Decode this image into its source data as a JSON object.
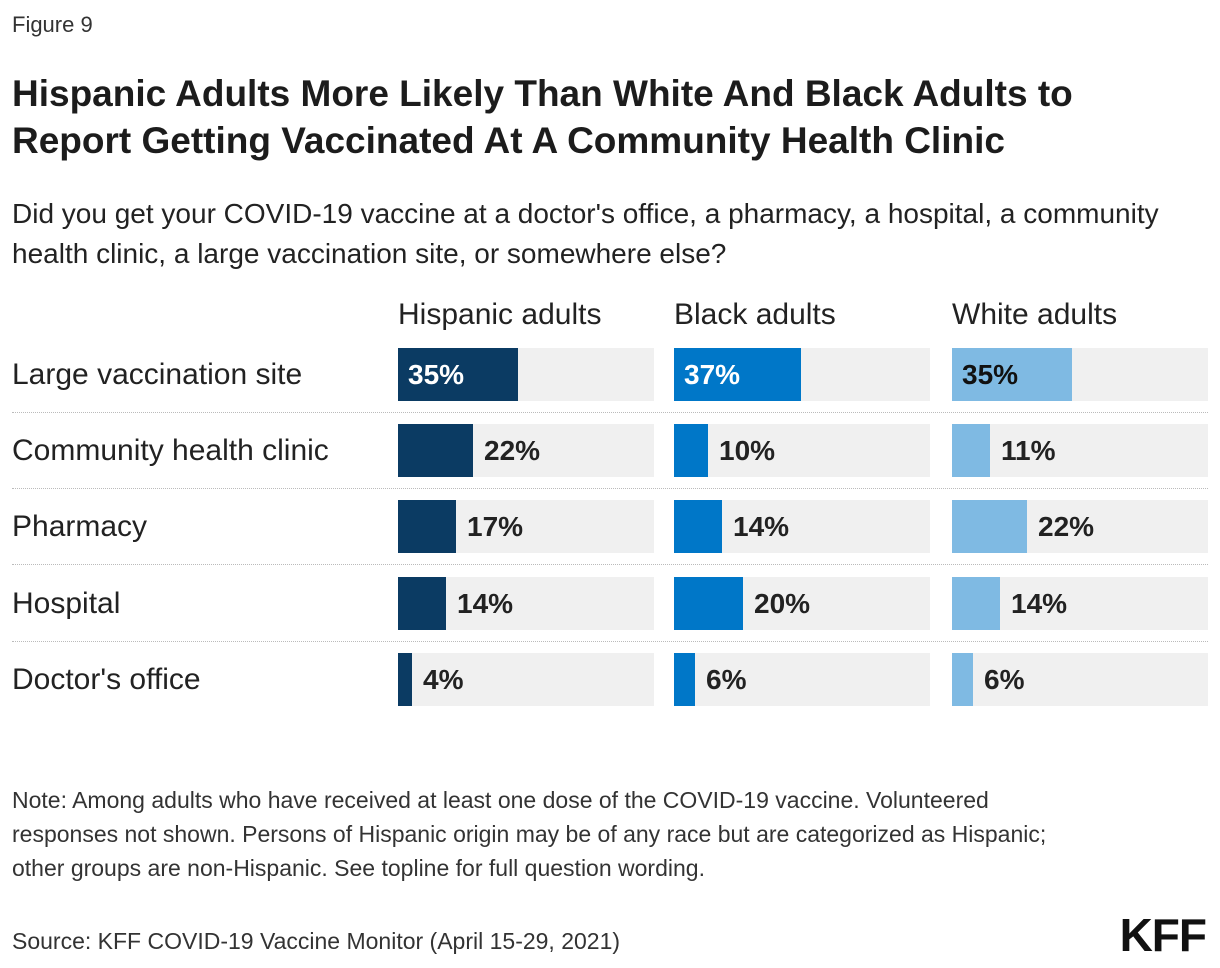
{
  "figure_label": "Figure 9",
  "logo_text": "KFF",
  "note": "Note: Among adults who have received at least one dose of the COVID-19 vaccine. Volunteered responses not shown. Persons of Hispanic origin may be of any race but are categorized as Hispanic; other groups are non-Hispanic. See topline for full question wording.",
  "source": "Source: KFF COVID-19 Vaccine Monitor (April 15-29, 2021)",
  "chart_data": {
    "type": "bar",
    "orientation": "horizontal",
    "title": "Hispanic Adults More Likely Than White And Black Adults to Report Getting Vaccinated At A Community Health Clinic",
    "subtitle": "Did you get your COVID-19 vaccine at a doctor's office, a pharmacy, a hospital, a community health clinic, a large vaccination site, or somewhere else?",
    "categories": [
      "Large vaccination site",
      "Community health clinic",
      "Pharmacy",
      "Hospital",
      "Doctor's office"
    ],
    "value_suffix": "%",
    "xlim": [
      0,
      100
    ],
    "grid": false,
    "series": [
      {
        "name": "Hispanic adults",
        "color": "#0b3b63",
        "values": [
          35,
          22,
          17,
          14,
          4
        ]
      },
      {
        "name": "Black adults",
        "color": "#0077c8",
        "values": [
          37,
          10,
          14,
          20,
          6
        ]
      },
      {
        "name": "White adults",
        "color": "#7fbae3",
        "values": [
          35,
          11,
          22,
          14,
          6
        ]
      }
    ]
  }
}
